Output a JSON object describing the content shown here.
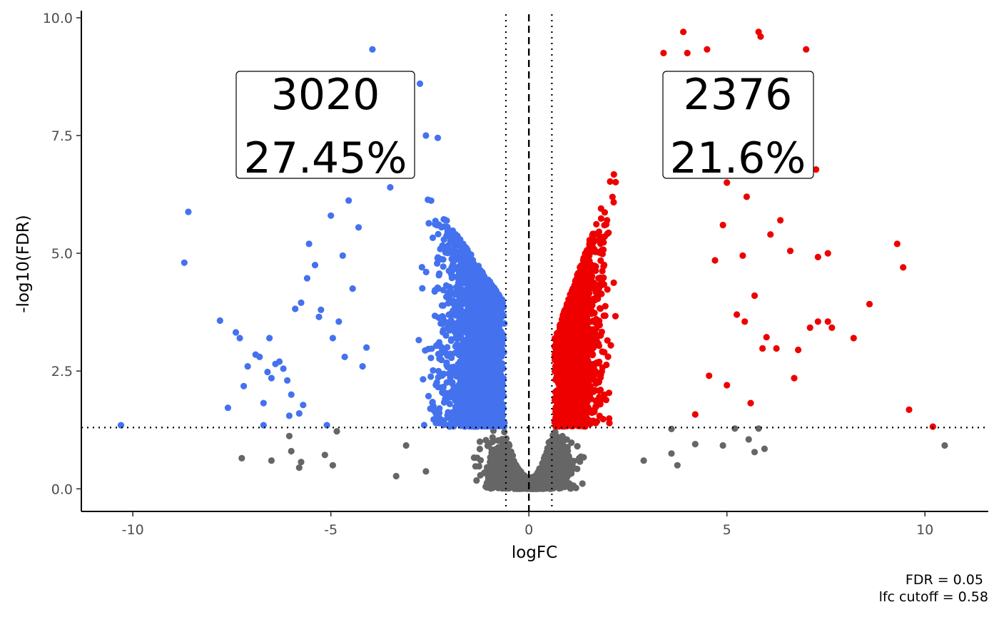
{
  "chart_data": {
    "type": "scatter",
    "title": "",
    "xlabel": "logFC",
    "ylabel": "-log10(FDR)",
    "xlim": [
      -11.3,
      11.6
    ],
    "ylim": [
      -0.48,
      10.15
    ],
    "x_ticks": [
      -10,
      -5,
      0,
      5,
      10
    ],
    "x_tick_labels": [
      "-10",
      "-5",
      "0",
      "5",
      "10"
    ],
    "y_ticks": [
      0,
      2.5,
      5,
      7.5,
      10
    ],
    "y_tick_labels": [
      "0.0",
      "2.5",
      "5.0",
      "7.5",
      "10.0"
    ],
    "grid": false,
    "reference_lines": {
      "fdr_threshold_y": 1.301,
      "lfc_cutoff_x": [
        -0.58,
        0.58
      ],
      "center_x": 0
    },
    "colors": {
      "down": "#4472ee",
      "up": "#ee0000",
      "not_significant": "#666666"
    },
    "annotations": {
      "down": {
        "count": "3020",
        "percent": "27.45%"
      },
      "up": {
        "count": "2376",
        "percent": "21.6%"
      }
    },
    "caption": {
      "fdr": "FDR =  0.05",
      "lfc": "lfc cutoff =  0.58"
    },
    "series": [
      {
        "group": "down",
        "points": [
          [
            -10.3,
            1.35
          ],
          [
            -8.7,
            4.8
          ],
          [
            -8.6,
            5.88
          ],
          [
            -7.8,
            3.57
          ],
          [
            -7.6,
            1.72
          ],
          [
            -7.4,
            3.32
          ],
          [
            -7.3,
            3.2
          ],
          [
            -7.2,
            2.18
          ],
          [
            -7.1,
            2.6
          ],
          [
            -6.9,
            2.85
          ],
          [
            -6.8,
            2.8
          ],
          [
            -6.7,
            1.82
          ],
          [
            -6.6,
            2.48
          ],
          [
            -6.55,
            3.2
          ],
          [
            -6.5,
            2.35
          ],
          [
            -6.4,
            2.65
          ],
          [
            -6.3,
            2.7
          ],
          [
            -6.2,
            2.55
          ],
          [
            -6.1,
            2.3
          ],
          [
            -6.0,
            2.0
          ],
          [
            -5.9,
            3.82
          ],
          [
            -5.8,
            1.6
          ],
          [
            -5.7,
            1.78
          ],
          [
            -5.6,
            4.47
          ],
          [
            -5.55,
            5.2
          ],
          [
            -5.4,
            4.75
          ],
          [
            -5.3,
            3.65
          ],
          [
            -5.1,
            1.35
          ],
          [
            -5.0,
            5.8
          ],
          [
            -4.8,
            3.55
          ],
          [
            -4.7,
            4.95
          ],
          [
            -4.55,
            6.12
          ],
          [
            -4.3,
            5.55
          ],
          [
            -4.2,
            2.6
          ],
          [
            -4.1,
            3.0
          ],
          [
            -3.95,
            9.33
          ],
          [
            -3.5,
            6.4
          ],
          [
            -3.2,
            7.2
          ],
          [
            -2.75,
            8.6
          ],
          [
            -2.6,
            7.5
          ],
          [
            -2.3,
            7.45
          ],
          [
            -6.05,
            1.55
          ],
          [
            -5.25,
            3.8
          ],
          [
            -4.95,
            3.2
          ],
          [
            -4.65,
            2.8
          ],
          [
            -4.45,
            4.25
          ],
          [
            -6.7,
            1.35
          ],
          [
            -5.75,
            3.95
          ]
        ],
        "dense_region": {
          "x_range": [
            -5.5,
            -0.58
          ],
          "y_range": [
            1.3,
            7.0
          ],
          "n": 3020
        }
      },
      {
        "group": "up",
        "points": [
          [
            3.9,
            9.7
          ],
          [
            5.8,
            9.7
          ],
          [
            5.85,
            9.6
          ],
          [
            7.0,
            9.33
          ],
          [
            4.0,
            9.25
          ],
          [
            4.5,
            9.33
          ],
          [
            3.4,
            9.25
          ],
          [
            4.3,
            8.6
          ],
          [
            5.0,
            6.5
          ],
          [
            5.5,
            6.2
          ],
          [
            4.9,
            5.6
          ],
          [
            6.1,
            5.4
          ],
          [
            6.35,
            5.7
          ],
          [
            6.6,
            5.05
          ],
          [
            5.4,
            4.95
          ],
          [
            7.3,
            4.92
          ],
          [
            7.55,
            5.0
          ],
          [
            9.3,
            5.2
          ],
          [
            9.45,
            4.7
          ],
          [
            8.6,
            3.92
          ],
          [
            7.1,
            3.42
          ],
          [
            7.3,
            3.55
          ],
          [
            7.55,
            3.55
          ],
          [
            7.65,
            3.42
          ],
          [
            8.2,
            3.2
          ],
          [
            6.0,
            3.22
          ],
          [
            5.9,
            2.98
          ],
          [
            6.25,
            2.98
          ],
          [
            6.8,
            2.95
          ],
          [
            6.7,
            2.35
          ],
          [
            5.6,
            1.82
          ],
          [
            9.6,
            1.68
          ],
          [
            10.2,
            1.32
          ],
          [
            7.25,
            6.78
          ],
          [
            6.9,
            6.7
          ],
          [
            4.7,
            4.85
          ],
          [
            5.25,
            3.7
          ],
          [
            4.55,
            2.4
          ],
          [
            4.2,
            1.58
          ],
          [
            5.0,
            2.2
          ],
          [
            5.7,
            4.1
          ],
          [
            5.45,
            3.55
          ]
        ],
        "dense_region": {
          "x_range": [
            0.58,
            4.5
          ],
          "y_range": [
            1.3,
            8.1
          ],
          "n": 2376
        }
      },
      {
        "group": "not_significant",
        "points": [
          [
            -7.25,
            0.65
          ],
          [
            -6.5,
            0.6
          ],
          [
            -6.05,
            1.12
          ],
          [
            -6.0,
            0.8
          ],
          [
            -5.8,
            0.45
          ],
          [
            -5.75,
            0.57
          ],
          [
            -5.15,
            0.72
          ],
          [
            -4.95,
            0.5
          ],
          [
            -4.85,
            1.22
          ],
          [
            -3.35,
            0.27
          ],
          [
            -3.1,
            0.92
          ],
          [
            -2.6,
            0.37
          ],
          [
            4.9,
            0.92
          ],
          [
            5.2,
            1.28
          ],
          [
            5.55,
            1.05
          ],
          [
            5.7,
            0.78
          ],
          [
            5.8,
            1.28
          ],
          [
            5.95,
            0.85
          ],
          [
            10.5,
            0.92
          ],
          [
            4.2,
            0.95
          ],
          [
            3.75,
            0.5
          ],
          [
            3.6,
            1.27
          ],
          [
            3.6,
            0.75
          ],
          [
            2.9,
            0.6
          ]
        ],
        "dense_region": {
          "x_range": [
            -3.0,
            3.0
          ],
          "y_range": [
            0,
            1.3
          ]
        }
      }
    ]
  }
}
